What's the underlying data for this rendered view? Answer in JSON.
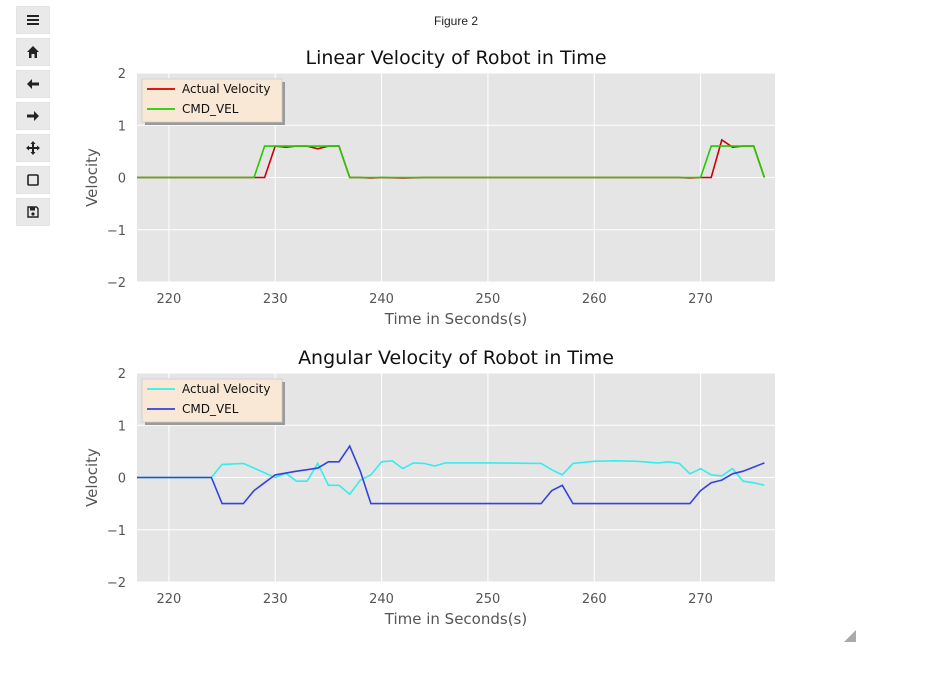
{
  "window": {
    "figure_label": "Figure 2"
  },
  "toolbar": {
    "items": [
      {
        "name": "menu-icon"
      },
      {
        "name": "home-icon"
      },
      {
        "name": "back-icon"
      },
      {
        "name": "forward-icon"
      },
      {
        "name": "pan-icon"
      },
      {
        "name": "zoom-rect-icon"
      },
      {
        "name": "save-icon"
      }
    ]
  },
  "colors": {
    "plot_bg": "#e5e5e5",
    "grid": "#ffffff",
    "legend_bg": "#fae8d7"
  },
  "chart_data": [
    {
      "type": "line",
      "title": "Linear Velocity of Robot in Time",
      "xlabel": "Time in Seconds(s)",
      "ylabel": "Velocity",
      "xlim": [
        217,
        277
      ],
      "ylim": [
        -2,
        2
      ],
      "xticks": [
        220,
        230,
        240,
        250,
        260,
        270
      ],
      "yticks": [
        2,
        1,
        0,
        -1,
        -2
      ],
      "xtick_labels": [
        "220",
        "230",
        "240",
        "250",
        "260",
        "270"
      ],
      "ytick_labels": [
        "2",
        "1",
        "0",
        "−1",
        "−2"
      ],
      "grid": true,
      "legend": "top-left",
      "series": [
        {
          "name": "Actual Velocity",
          "color": "#cc0000",
          "x": [
            217,
            225,
            228,
            229,
            230,
            231,
            232,
            233,
            234,
            235,
            236,
            237,
            238,
            239,
            240,
            242,
            244,
            246,
            250,
            255,
            260,
            265,
            268,
            269,
            270,
            271,
            272,
            273,
            274,
            275,
            276
          ],
          "y": [
            0,
            0,
            0,
            0,
            0.6,
            0.58,
            0.6,
            0.6,
            0.55,
            0.6,
            0.6,
            0,
            0,
            -0.01,
            0,
            -0.01,
            0,
            0,
            0,
            0,
            0,
            0,
            0,
            -0.01,
            0,
            0,
            0.72,
            0.58,
            0.6,
            0.6,
            0
          ]
        },
        {
          "name": "CMD_VEL",
          "color": "#22cc00",
          "x": [
            217,
            225,
            228,
            229,
            230,
            231,
            232,
            233,
            234,
            235,
            236,
            237,
            238,
            240,
            245,
            250,
            255,
            260,
            265,
            269,
            270,
            271,
            272,
            273,
            274,
            275,
            276
          ],
          "y": [
            0,
            0,
            0,
            0.6,
            0.6,
            0.6,
            0.6,
            0.6,
            0.6,
            0.6,
            0.6,
            0,
            0,
            0,
            0,
            0,
            0,
            0,
            0,
            0,
            0,
            0.6,
            0.6,
            0.6,
            0.6,
            0.6,
            0
          ]
        }
      ]
    },
    {
      "type": "line",
      "title": "Angular Velocity of Robot in Time",
      "xlabel": "Time in Seconds(s)",
      "ylabel": "Velocity",
      "xlim": [
        217,
        277
      ],
      "ylim": [
        -2,
        2
      ],
      "xticks": [
        220,
        230,
        240,
        250,
        260,
        270
      ],
      "yticks": [
        2,
        1,
        0,
        -1,
        -2
      ],
      "xtick_labels": [
        "220",
        "230",
        "240",
        "250",
        "260",
        "270"
      ],
      "ytick_labels": [
        "2",
        "1",
        "0",
        "−1",
        "−2"
      ],
      "grid": true,
      "legend": "top-left",
      "series": [
        {
          "name": "Actual Velocity",
          "color": "#33eeee",
          "x": [
            217,
            224,
            225,
            227,
            228,
            230,
            231,
            232,
            233,
            234,
            235,
            236,
            237,
            238,
            239,
            240,
            241,
            242,
            243,
            244,
            245,
            246,
            250,
            255,
            256,
            257,
            258,
            260,
            262,
            264,
            266,
            267,
            268,
            269,
            270,
            271,
            272,
            273,
            274,
            275,
            276
          ],
          "y": [
            0,
            0,
            0.25,
            0.27,
            0.18,
            0,
            0.08,
            -0.07,
            -0.07,
            0.27,
            -0.15,
            -0.15,
            -0.32,
            -0.05,
            0.05,
            0.3,
            0.32,
            0.17,
            0.28,
            0.27,
            0.22,
            0.28,
            0.28,
            0.27,
            0.15,
            0.05,
            0.27,
            0.31,
            0.32,
            0.31,
            0.28,
            0.3,
            0.27,
            0.07,
            0.17,
            0.05,
            0.03,
            0.17,
            -0.07,
            -0.1,
            -0.15
          ]
        },
        {
          "name": "CMD_VEL",
          "color": "#3344dd",
          "x": [
            217,
            224,
            225,
            226,
            227,
            228,
            229,
            230,
            232,
            233,
            234,
            235,
            236,
            237,
            238,
            239,
            240,
            250,
            255,
            256,
            257,
            258,
            260,
            265,
            268,
            269,
            270,
            271,
            272,
            273,
            274,
            275,
            276
          ],
          "y": [
            0,
            0,
            -0.5,
            -0.5,
            -0.5,
            -0.25,
            -0.1,
            0.05,
            0.12,
            0.15,
            0.18,
            0.3,
            0.3,
            0.6,
            0.12,
            -0.5,
            -0.5,
            -0.5,
            -0.5,
            -0.25,
            -0.15,
            -0.5,
            -0.5,
            -0.5,
            -0.5,
            -0.5,
            -0.25,
            -0.1,
            -0.05,
            0.07,
            0.12,
            0.2,
            0.28
          ]
        }
      ]
    }
  ]
}
